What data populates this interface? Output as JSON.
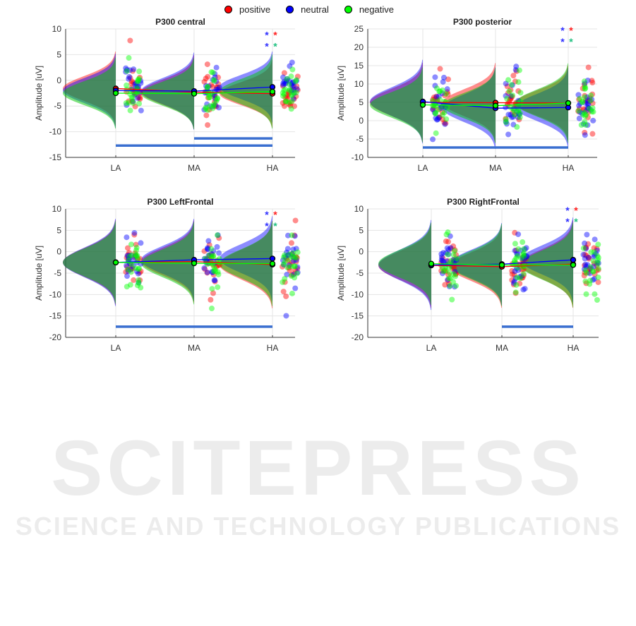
{
  "legend": [
    {
      "label": "positive",
      "color": "#ff0000"
    },
    {
      "label": "neutral",
      "color": "#0000ff"
    },
    {
      "label": "negative",
      "color": "#00ff00"
    }
  ],
  "watermark": {
    "line1": "SCITEPRESS",
    "line2": "SCIENCE AND TECHNOLOGY PUBLICATIONS"
  },
  "chart_data": [
    {
      "type": "raincloud",
      "title": "P300 central",
      "ylabel": "Amplitude [uV]",
      "categories": [
        "LA",
        "MA",
        "HA"
      ],
      "ylim": [
        -15,
        10
      ],
      "yticks": [
        10,
        5,
        0,
        -5,
        -10,
        -15
      ],
      "grid": true,
      "series": [
        {
          "name": "positive",
          "means": [
            -1.6,
            -2.3,
            -2.6
          ],
          "sd": [
            2.4,
            2.4,
            2.2
          ]
        },
        {
          "name": "neutral",
          "means": [
            -2.0,
            -2.1,
            -1.3
          ],
          "sd": [
            2.4,
            2.5,
            2.3
          ]
        },
        {
          "name": "negative",
          "means": [
            -2.5,
            -2.6,
            -2.2
          ],
          "sd": [
            2.3,
            2.3,
            2.4
          ]
        }
      ],
      "significance_bars": [
        {
          "from": "MA",
          "to": "HA",
          "y": -11.3
        },
        {
          "from": "LA",
          "to": "HA",
          "y": -12.7
        }
      ],
      "stars": {
        "category": "HA",
        "rows": [
          [
            "neutral",
            "positive"
          ],
          [
            "neutral",
            "negative"
          ]
        ],
        "y": [
          8.4,
          7.3
        ]
      }
    },
    {
      "type": "raincloud",
      "title": "P300 posterior",
      "ylabel": "Amplitude [uV]",
      "categories": [
        "LA",
        "MA",
        "HA"
      ],
      "ylim": [
        -10,
        25
      ],
      "yticks": [
        25,
        20,
        15,
        10,
        5,
        0,
        -5,
        -10
      ],
      "grid": true,
      "series": [
        {
          "name": "positive",
          "means": [
            5.0,
            4.9,
            4.8
          ],
          "sd": [
            3.6,
            3.6,
            3.4
          ]
        },
        {
          "name": "neutral",
          "means": [
            5.2,
            3.4,
            3.6
          ],
          "sd": [
            3.8,
            3.7,
            3.6
          ]
        },
        {
          "name": "negative",
          "means": [
            4.3,
            4.1,
            4.8
          ],
          "sd": [
            3.4,
            3.4,
            3.6
          ]
        }
      ],
      "significance_bars": [
        {
          "from": "LA",
          "to": "HA",
          "y": -7.3
        }
      ],
      "stars": {
        "category": "HA",
        "rows": [
          [
            "neutral",
            "positive"
          ],
          [
            "neutral",
            "negative"
          ]
        ],
        "y": [
          24,
          22.5
        ]
      }
    },
    {
      "type": "raincloud",
      "title": "P300 LeftFrontal",
      "ylabel": "Amplitude [uV]",
      "categories": [
        "LA",
        "MA",
        "HA"
      ],
      "ylim": [
        -20,
        10
      ],
      "yticks": [
        10,
        5,
        0,
        -5,
        -10,
        -15,
        -20
      ],
      "grid": true,
      "series": [
        {
          "name": "positive",
          "means": [
            -2.5,
            -2.3,
            -3.0
          ],
          "sd": [
            3.3,
            3.2,
            3.4
          ]
        },
        {
          "name": "neutral",
          "means": [
            -2.5,
            -1.9,
            -1.6
          ],
          "sd": [
            3.4,
            3.2,
            3.3
          ]
        },
        {
          "name": "negative",
          "means": [
            -2.5,
            -2.7,
            -2.8
          ],
          "sd": [
            3.2,
            3.2,
            3.3
          ]
        }
      ],
      "significance_bars": [
        {
          "from": "LA",
          "to": "HA",
          "y": -17.5
        }
      ],
      "stars": {
        "category": "HA",
        "rows": [
          [
            "neutral",
            "positive"
          ],
          [
            "neutral",
            "negative"
          ]
        ],
        "y": [
          8.2,
          6.8
        ]
      }
    },
    {
      "type": "raincloud",
      "title": "P300 RightFrontal",
      "ylabel": "Amplitude [uV]",
      "categories": [
        "LA",
        "MA",
        "HA"
      ],
      "ylim": [
        -20,
        10
      ],
      "yticks": [
        10,
        5,
        0,
        -5,
        -10,
        -15,
        -20
      ],
      "grid": true,
      "series": [
        {
          "name": "positive",
          "means": [
            -3.2,
            -3.5,
            -2.9
          ],
          "sd": [
            3.3,
            3.2,
            3.4
          ]
        },
        {
          "name": "neutral",
          "means": [
            -3.1,
            -2.9,
            -1.9
          ],
          "sd": [
            3.5,
            3.2,
            3.3
          ]
        },
        {
          "name": "negative",
          "means": [
            -2.8,
            -3.1,
            -3.1
          ],
          "sd": [
            3.2,
            3.2,
            3.3
          ]
        }
      ],
      "significance_bars": [
        {
          "from": "MA",
          "to": "HA",
          "y": -17.5
        }
      ],
      "stars": {
        "category": "HA",
        "rows": [
          [
            "neutral",
            "positive"
          ],
          [
            "neutral",
            "negative"
          ]
        ],
        "y": [
          9.2,
          7.8
        ]
      }
    }
  ]
}
